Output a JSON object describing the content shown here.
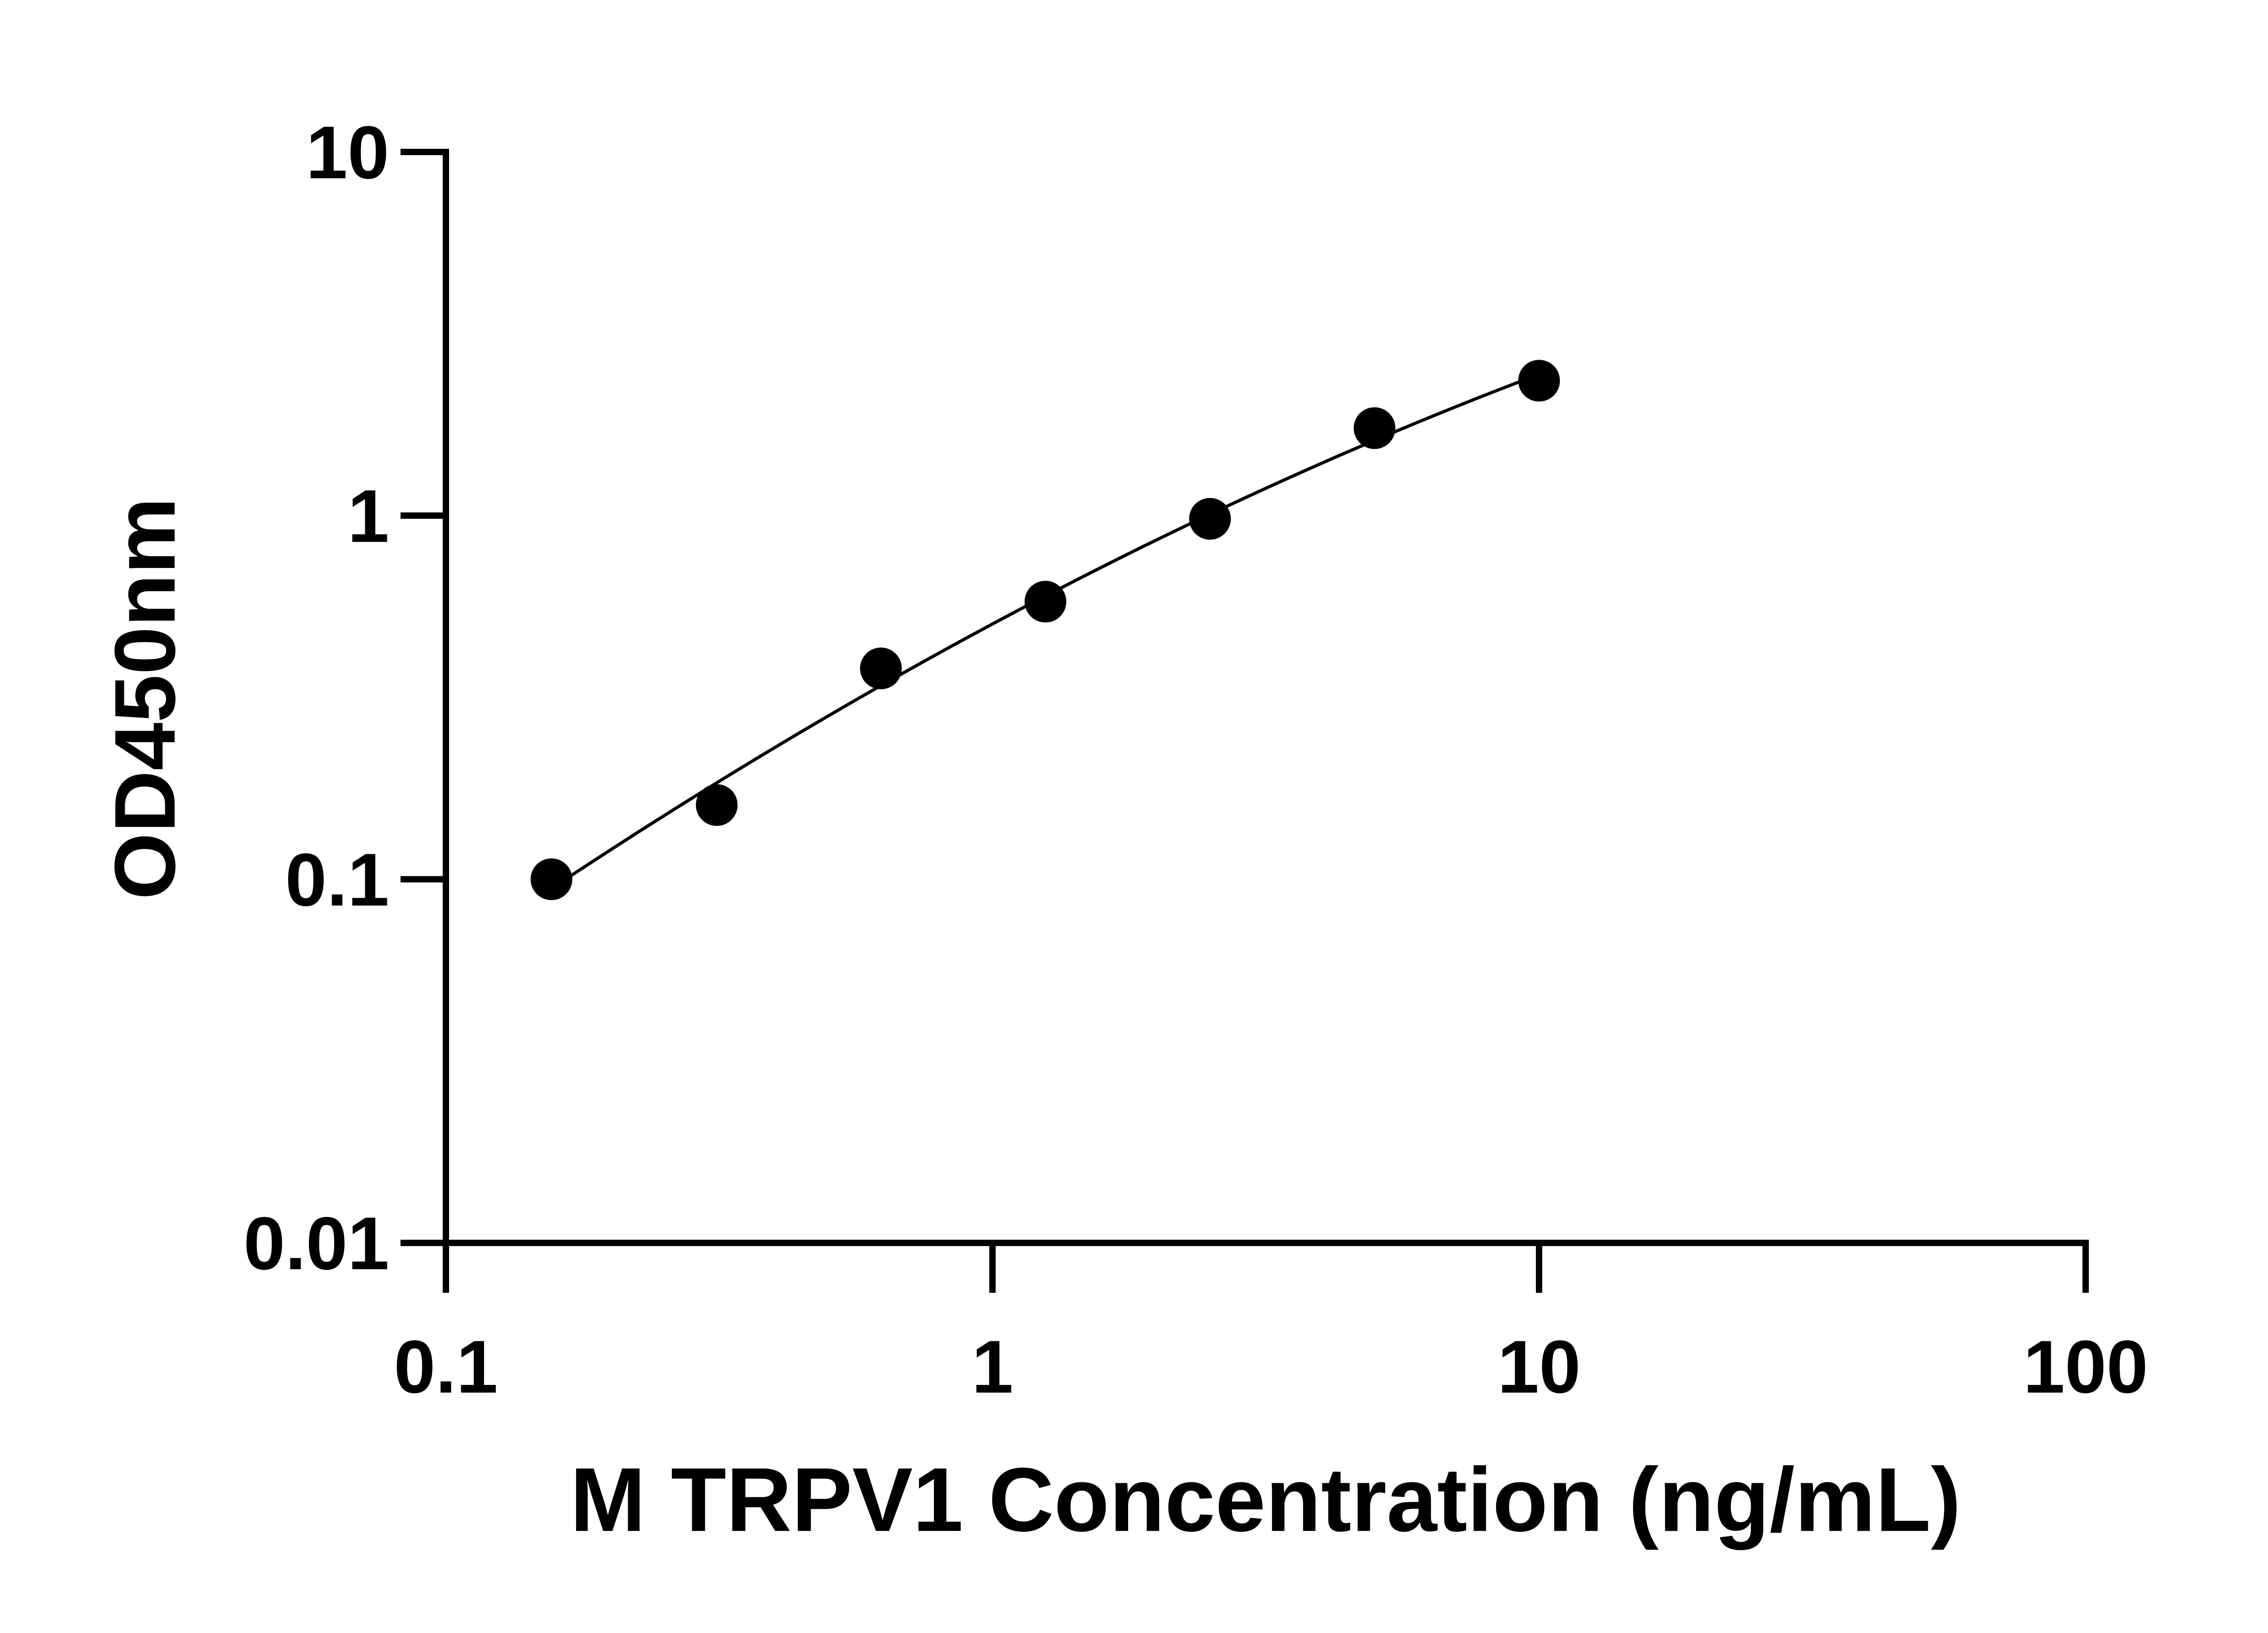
{
  "chart_data": {
    "type": "scatter",
    "title": "",
    "xlabel": "M TRPV1 Concentration (ng/mL)",
    "ylabel": "OD450nm",
    "xscale": "log",
    "yscale": "log",
    "xlim": [
      0.1,
      100
    ],
    "ylim": [
      0.01,
      10
    ],
    "xticks": [
      "0.1",
      "1",
      "10",
      "100"
    ],
    "yticks": [
      "0.01",
      "0.1",
      "1",
      "10"
    ],
    "grid": false,
    "legend": "none",
    "fit_line": true,
    "colors": {
      "points": "#000000",
      "line": "#000000"
    },
    "series": [
      {
        "x": [
          0.156,
          0.313,
          0.625,
          1.25,
          2.5,
          5,
          10
        ],
        "y": [
          0.1,
          0.16,
          0.38,
          0.58,
          0.98,
          1.74,
          2.35
        ]
      }
    ]
  }
}
